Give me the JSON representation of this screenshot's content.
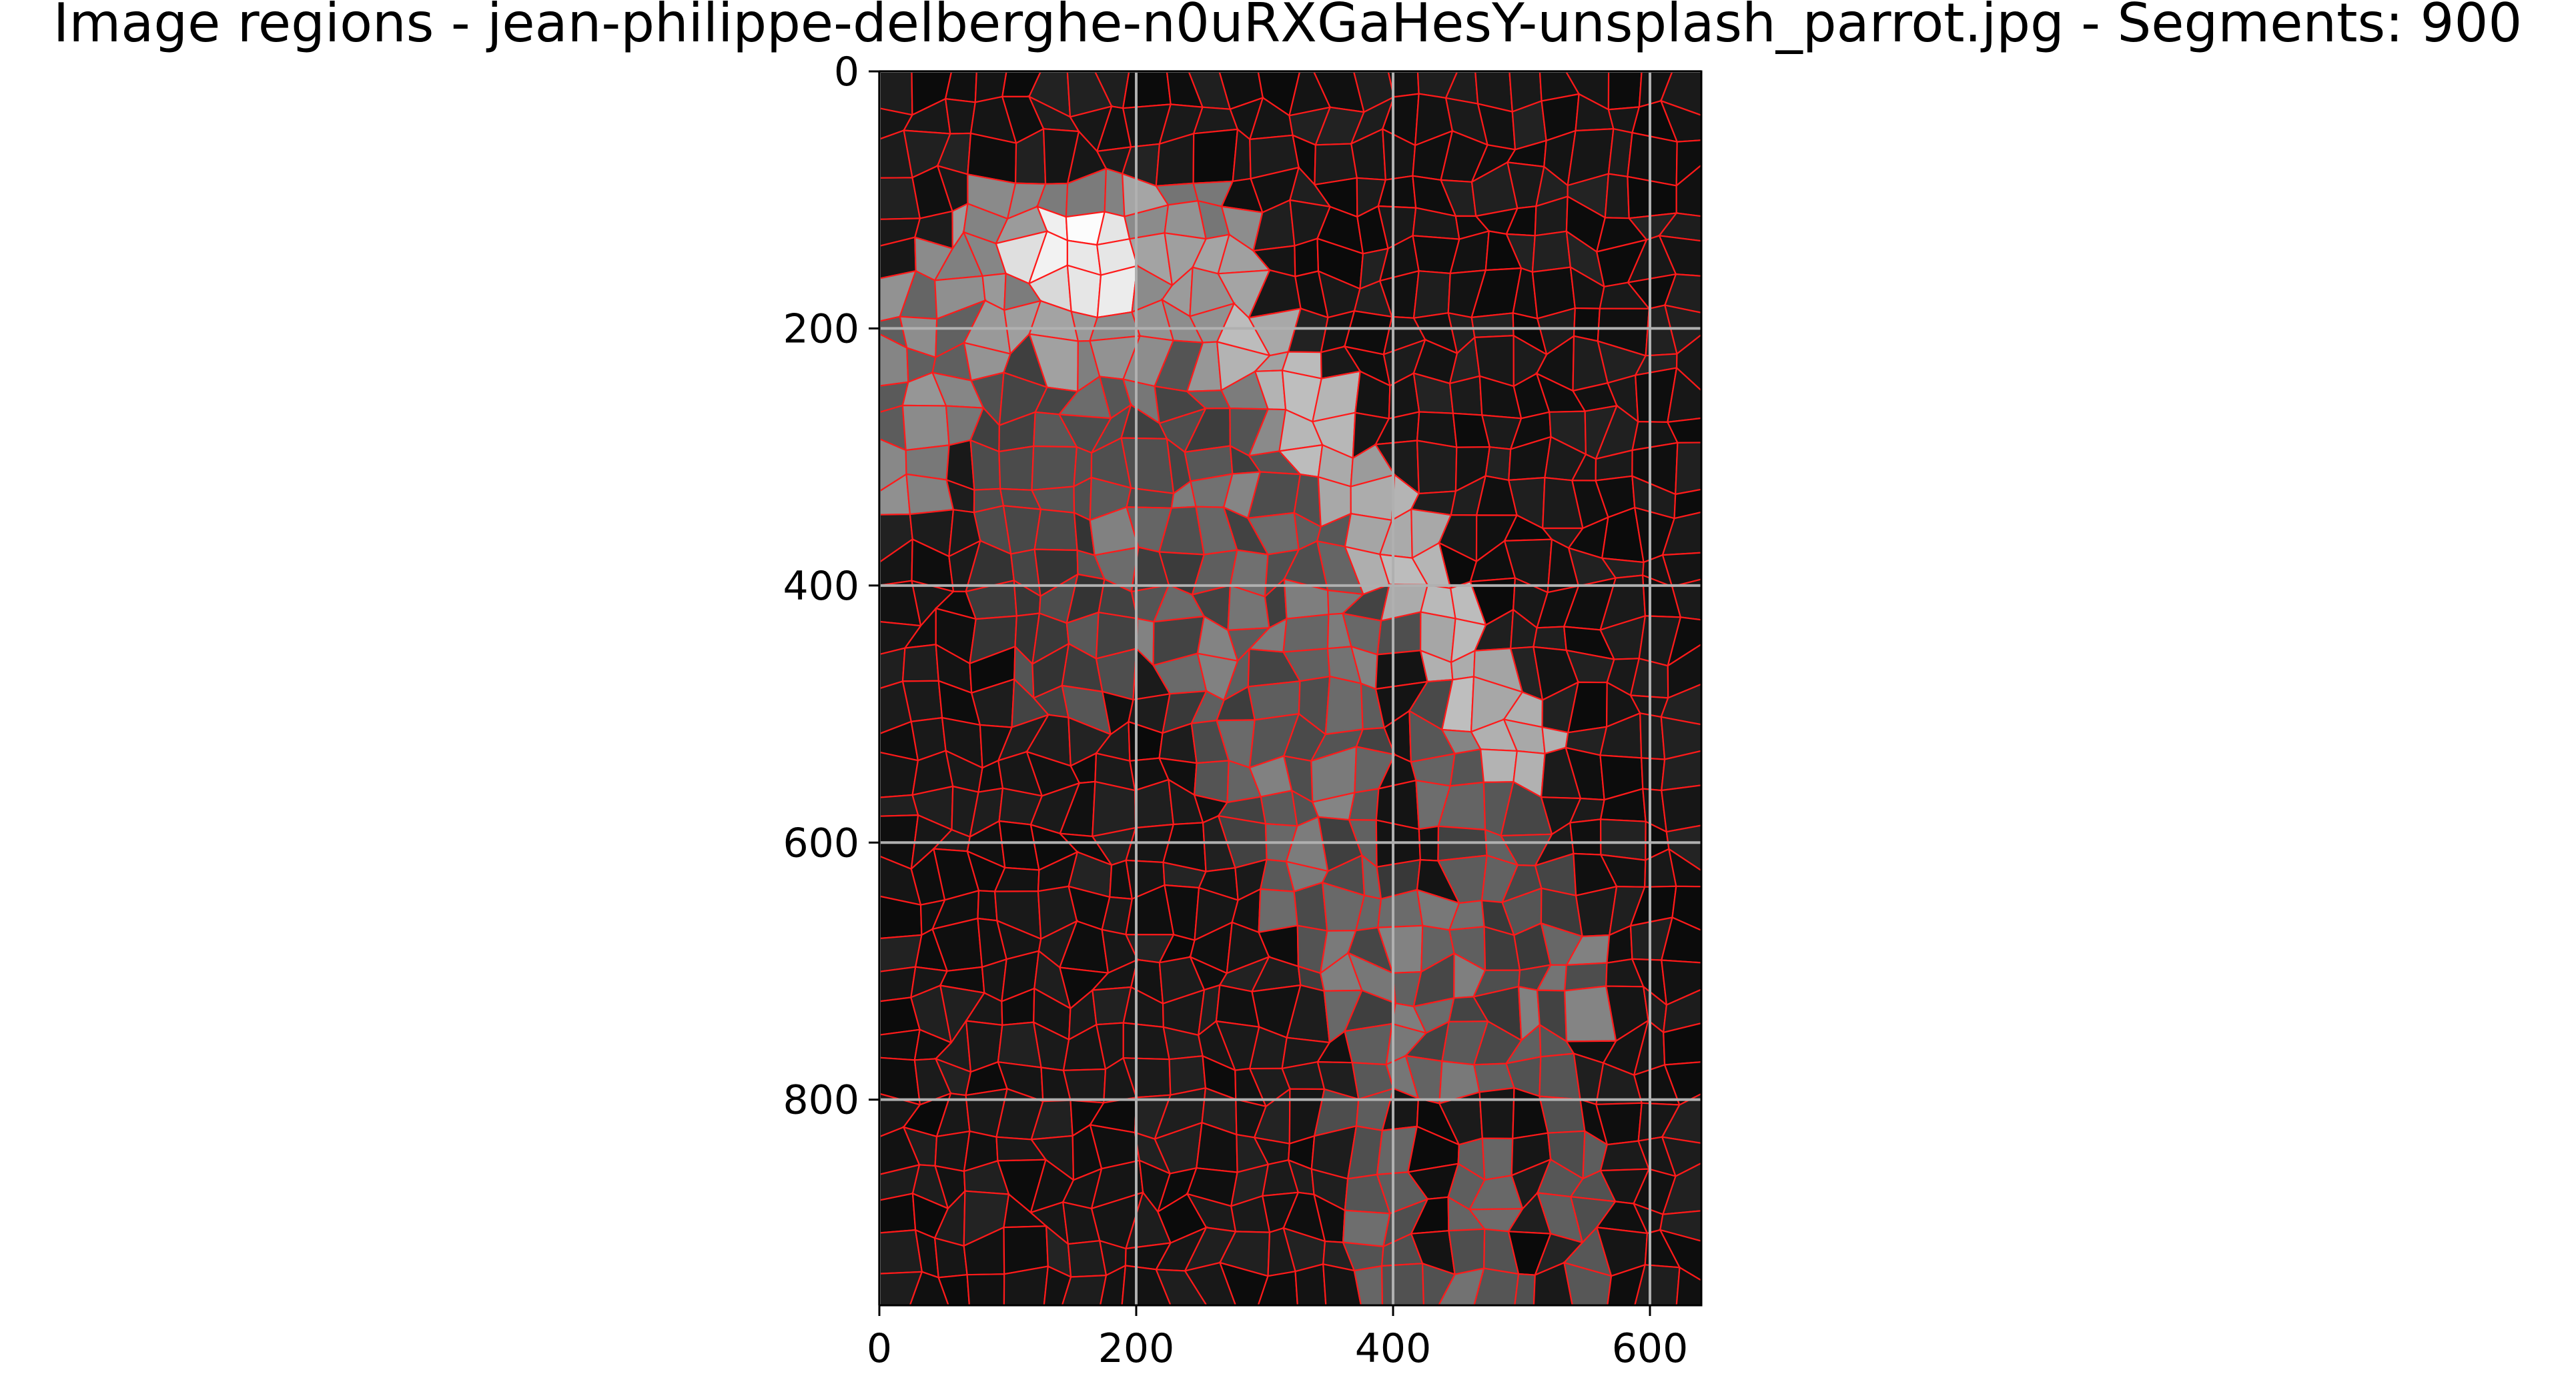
{
  "chart_data": {
    "type": "image",
    "title": "Image regions - jean-philippe-delberghe-n0uRXGaHesY-unsplash_parrot.jpg - Segments: 900",
    "image_subject": "segmented parrot photograph, grayscale regions with red segment boundaries",
    "segments": 900,
    "x_ticks": [
      0,
      200,
      400,
      600
    ],
    "y_ticks": [
      0,
      200,
      400,
      600,
      800
    ],
    "x_tick_labels": [
      "0",
      "200",
      "400",
      "600"
    ],
    "y_tick_labels": [
      "0",
      "200",
      "400",
      "600",
      "800"
    ],
    "xlim": [
      0,
      640
    ],
    "ylim": [
      960,
      0
    ],
    "grid": true,
    "xlabel": "",
    "ylabel": "",
    "colors": {
      "boundary": "#ff1a1a",
      "background": "#0d0d0d",
      "grid": "#b0b0b0"
    }
  }
}
